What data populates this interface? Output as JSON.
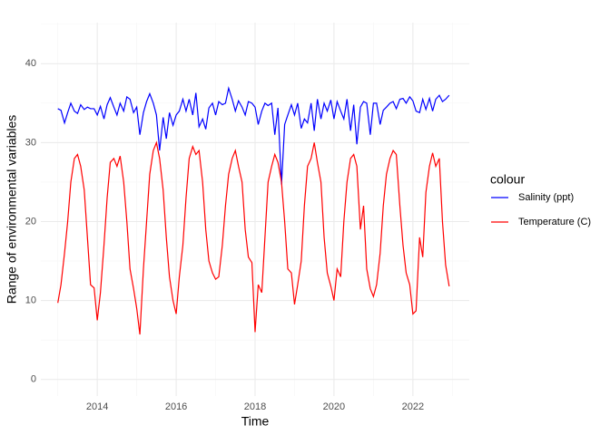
{
  "chart_data": {
    "type": "line",
    "x_label": "Time",
    "y_label": "Range of environmental variables",
    "legend_title": "colour",
    "legend_position": "right",
    "grid": true,
    "xlim": [
      2012.57,
      2023.43
    ],
    "ylim": [
      -2.1,
      45.2
    ],
    "xticks": [
      2014,
      2016,
      2018,
      2020,
      2022
    ],
    "yticks": [
      0,
      10,
      20,
      30,
      40
    ],
    "x": [
      2013.0,
      2013.08,
      2013.17,
      2013.25,
      2013.33,
      2013.42,
      2013.5,
      2013.58,
      2013.67,
      2013.75,
      2013.83,
      2013.92,
      2014.0,
      2014.08,
      2014.17,
      2014.25,
      2014.33,
      2014.42,
      2014.5,
      2014.58,
      2014.67,
      2014.75,
      2014.83,
      2014.92,
      2015.0,
      2015.08,
      2015.17,
      2015.25,
      2015.33,
      2015.42,
      2015.5,
      2015.58,
      2015.67,
      2015.75,
      2015.83,
      2015.92,
      2016.0,
      2016.08,
      2016.17,
      2016.25,
      2016.33,
      2016.42,
      2016.5,
      2016.58,
      2016.67,
      2016.75,
      2016.83,
      2016.92,
      2017.0,
      2017.08,
      2017.17,
      2017.25,
      2017.33,
      2017.42,
      2017.5,
      2017.58,
      2017.67,
      2017.75,
      2017.83,
      2017.92,
      2018.0,
      2018.08,
      2018.17,
      2018.25,
      2018.33,
      2018.42,
      2018.5,
      2018.58,
      2018.67,
      2018.75,
      2018.83,
      2018.92,
      2019.0,
      2019.08,
      2019.17,
      2019.25,
      2019.33,
      2019.42,
      2019.5,
      2019.58,
      2019.67,
      2019.75,
      2019.83,
      2019.92,
      2020.0,
      2020.08,
      2020.17,
      2020.25,
      2020.33,
      2020.42,
      2020.5,
      2020.58,
      2020.67,
      2020.75,
      2020.83,
      2020.92,
      2021.0,
      2021.08,
      2021.17,
      2021.25,
      2021.33,
      2021.42,
      2021.5,
      2021.58,
      2021.67,
      2021.75,
      2021.83,
      2021.92,
      2022.0,
      2022.08,
      2022.17,
      2022.25,
      2022.33,
      2022.42,
      2022.5,
      2022.58,
      2022.67,
      2022.75,
      2022.83,
      2022.92
    ],
    "series": [
      {
        "name": "Salinity (ppt)",
        "color": "#0000ff",
        "values": [
          34.3,
          34.1,
          32.5,
          33.8,
          35,
          34,
          33.7,
          34.8,
          34.2,
          34.5,
          34.3,
          34.3,
          33.5,
          34.6,
          33,
          34.8,
          35.7,
          34.5,
          33.5,
          35,
          34,
          35.8,
          35.5,
          33.8,
          34.5,
          31,
          33.8,
          35.2,
          36.2,
          35,
          33.5,
          29,
          33.2,
          30.5,
          33.8,
          32.2,
          33.5,
          34,
          35.5,
          34,
          35.5,
          33.5,
          36.3,
          32,
          33,
          31.7,
          34.4,
          35,
          33.5,
          35.2,
          34.8,
          35,
          36.9,
          35.5,
          34,
          35.3,
          34.5,
          33.5,
          35.2,
          35,
          34.5,
          32.3,
          34,
          35,
          34.7,
          35,
          31,
          34.4,
          24.7,
          32.3,
          33.5,
          34.8,
          33.5,
          35,
          31.8,
          33,
          32.5,
          35,
          31.5,
          35.5,
          33,
          35,
          34,
          35.4,
          33,
          35.2,
          34,
          33,
          35.5,
          31.5,
          34.8,
          29.8,
          34.5,
          35.2,
          35,
          31,
          35,
          35,
          32.3,
          34.1,
          34.5,
          35,
          35.2,
          34.3,
          35.5,
          35.6,
          35,
          35.8,
          35.3,
          34,
          33.8,
          35.5,
          34.2,
          35.6,
          34,
          35.5,
          36,
          35.2,
          35.5,
          36
        ]
      },
      {
        "name": "Temperature (C)",
        "color": "#ff0000",
        "values": [
          9.7,
          12,
          16,
          20,
          25,
          28,
          28.5,
          27,
          24,
          18,
          12,
          11.6,
          7.5,
          11,
          17,
          23,
          27.5,
          28,
          27,
          28.3,
          25,
          20,
          14,
          11.5,
          9,
          5.7,
          14,
          20,
          26,
          29,
          30,
          28,
          24,
          18,
          13,
          10,
          8.3,
          13,
          17,
          23,
          28,
          29.5,
          28.5,
          29,
          25,
          19,
          15,
          13.5,
          12.7,
          13,
          17,
          22,
          26,
          28,
          29,
          27,
          25,
          19,
          15.5,
          14.8,
          6,
          12,
          11,
          18,
          25,
          27,
          28.5,
          27.5,
          25,
          20,
          14,
          13.5,
          9.5,
          12,
          15,
          22,
          27,
          28,
          30,
          27.5,
          25,
          18,
          13.5,
          11.8,
          10,
          14,
          13,
          20,
          25,
          28,
          28.5,
          27,
          19,
          22,
          14,
          11.5,
          10.5,
          12,
          16,
          22,
          26,
          28,
          29,
          28.5,
          22,
          17,
          13.5,
          12,
          8.3,
          8.7,
          18,
          15.5,
          23.7,
          27,
          28.7,
          27,
          28,
          20,
          14.5,
          11.8
        ]
      }
    ]
  }
}
